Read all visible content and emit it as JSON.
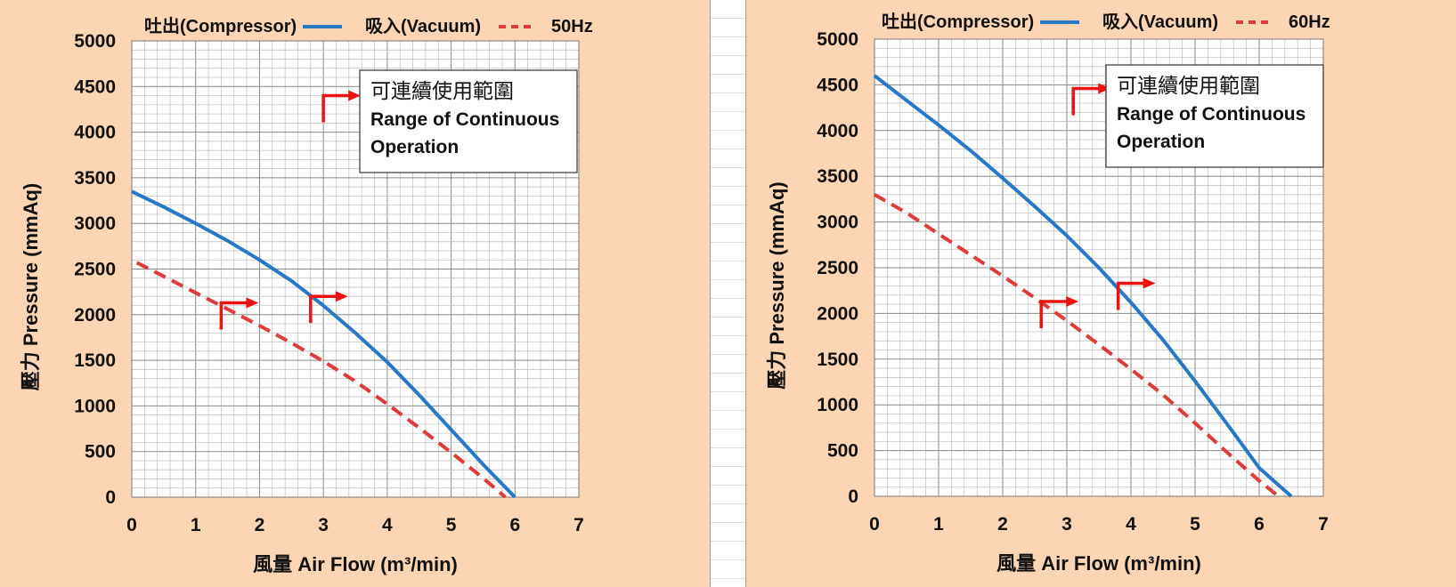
{
  "colors": {
    "background": "#fcd5b5",
    "compressor_line": "#2878c8",
    "vacuum_line": "#e03a3a",
    "arrow": "#ee1111",
    "grid_minor": "#bdbdbd",
    "grid_major": "#8a8a8a"
  },
  "chart_data": [
    {
      "type": "line",
      "legend_position": "top",
      "frequency_label": "50Hz",
      "xlabel": "風量 Air Flow (m³/min)",
      "ylabel": "壓力 Pressure (mmAq)",
      "xlim": [
        0,
        7
      ],
      "ylim": [
        0,
        5000
      ],
      "x_ticks": [
        "0",
        "1",
        "2",
        "3",
        "4",
        "5",
        "6",
        "7"
      ],
      "y_ticks": [
        "0",
        "500",
        "1000",
        "1500",
        "2000",
        "2500",
        "3000",
        "3500",
        "4000",
        "4500",
        "5000"
      ],
      "grid": true,
      "annotation": {
        "line1": "可連續使用範圍",
        "line2": "Range of Continuous",
        "line3": "Operation"
      },
      "series": [
        {
          "name": "吐出(Compressor)",
          "style": "solid",
          "points": [
            [
              0,
              3350
            ],
            [
              0.5,
              3180
            ],
            [
              1,
              3000
            ],
            [
              1.5,
              2810
            ],
            [
              2,
              2600
            ],
            [
              2.5,
              2370
            ],
            [
              3,
              2100
            ],
            [
              3.5,
              1800
            ],
            [
              4,
              1480
            ],
            [
              4.5,
              1120
            ],
            [
              5,
              740
            ],
            [
              5.5,
              360
            ],
            [
              6,
              0
            ]
          ]
        },
        {
          "name": "吸入(Vacuum)",
          "style": "dashed",
          "points": [
            [
              0.08,
              2570
            ],
            [
              0.5,
              2420
            ],
            [
              1,
              2240
            ],
            [
              1.5,
              2060
            ],
            [
              2,
              1880
            ],
            [
              2.5,
              1690
            ],
            [
              3,
              1490
            ],
            [
              3.5,
              1270
            ],
            [
              4,
              1020
            ],
            [
              4.5,
              760
            ],
            [
              5,
              490
            ],
            [
              5.5,
              210
            ],
            [
              5.85,
              0
            ]
          ]
        }
      ],
      "markers": [
        {
          "x": 1.4,
          "y": 2130
        },
        {
          "x": 2.8,
          "y": 2200
        },
        {
          "x": 3.0,
          "y": 4400
        }
      ]
    },
    {
      "type": "line",
      "legend_position": "top",
      "frequency_label": "60Hz",
      "xlabel": "風量 Air Flow (m³/min)",
      "ylabel": "壓力 Pressure (mmAq)",
      "xlim": [
        0,
        7
      ],
      "ylim": [
        0,
        5000
      ],
      "x_ticks": [
        "0",
        "1",
        "2",
        "3",
        "4",
        "5",
        "6",
        "7"
      ],
      "y_ticks": [
        "0",
        "500",
        "1000",
        "1500",
        "2000",
        "2500",
        "3000",
        "3500",
        "4000",
        "4500",
        "5000"
      ],
      "grid": true,
      "annotation": {
        "line1": "可連續使用範圍",
        "line2": "Range of Continuous",
        "line3": "Operation"
      },
      "series": [
        {
          "name": "吐出(Compressor)",
          "style": "solid",
          "points": [
            [
              0,
              4600
            ],
            [
              0.5,
              4330
            ],
            [
              1,
              4060
            ],
            [
              1.5,
              3780
            ],
            [
              2,
              3480
            ],
            [
              2.5,
              3170
            ],
            [
              3,
              2850
            ],
            [
              3.5,
              2500
            ],
            [
              4,
              2120
            ],
            [
              4.5,
              1710
            ],
            [
              5,
              1260
            ],
            [
              5.5,
              790
            ],
            [
              6,
              310
            ],
            [
              6.5,
              0
            ]
          ]
        },
        {
          "name": "吸入(Vacuum)",
          "style": "dashed",
          "points": [
            [
              0,
              3300
            ],
            [
              0.5,
              3100
            ],
            [
              1,
              2870
            ],
            [
              1.5,
              2640
            ],
            [
              2,
              2410
            ],
            [
              2.5,
              2170
            ],
            [
              3,
              1920
            ],
            [
              3.5,
              1660
            ],
            [
              4,
              1390
            ],
            [
              4.5,
              1110
            ],
            [
              5,
              800
            ],
            [
              5.5,
              480
            ],
            [
              6,
              170
            ],
            [
              6.3,
              0
            ]
          ]
        }
      ],
      "markers": [
        {
          "x": 2.6,
          "y": 2130
        },
        {
          "x": 3.8,
          "y": 2330
        },
        {
          "x": 3.1,
          "y": 4460
        }
      ]
    }
  ]
}
